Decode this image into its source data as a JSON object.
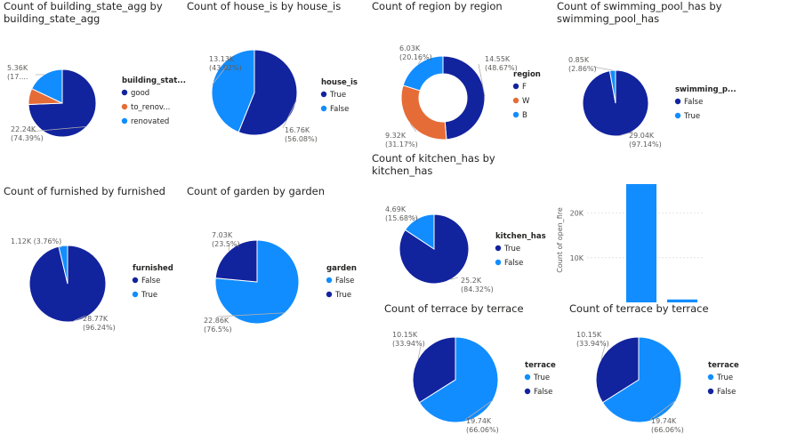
{
  "colors": {
    "dark": "#12239e",
    "light": "#118dff",
    "orange": "#e66c37"
  },
  "chart_data": [
    {
      "type": "pie",
      "title": "Count of building_state_agg by\nbuilding_state_agg",
      "legend_title": "building_stat...",
      "legend_placement": "right",
      "slices": [
        {
          "label": "good",
          "legend": "good",
          "value": 22.24,
          "value_label": "22.24K",
          "pct_label": "(74.39%)",
          "color": "#12239e"
        },
        {
          "label": "to_renovate",
          "legend": "to_renov...",
          "value": 2.3,
          "value_label": "",
          "pct_label": "",
          "color": "#e66c37"
        },
        {
          "label": "renovated",
          "legend": "renovated",
          "value": 5.36,
          "value_label": "5.36K",
          "pct_label": "(17....",
          "color": "#118dff"
        }
      ]
    },
    {
      "type": "pie",
      "title": "Count of house_is by house_is",
      "legend_title": "house_is",
      "legend_placement": "right",
      "slices": [
        {
          "label": "True",
          "legend": "True",
          "value": 16.76,
          "value_label": "16.76K",
          "pct_label": "(56.08%)",
          "color": "#12239e"
        },
        {
          "label": "False",
          "legend": "False",
          "value": 13.13,
          "value_label": "13.13K",
          "pct_label": "(43.92%)",
          "color": "#118dff"
        }
      ]
    },
    {
      "type": "donut",
      "title": "Count of region by region",
      "legend_title": "region",
      "legend_placement": "right",
      "slices": [
        {
          "label": "F",
          "legend": "F",
          "value": 14.55,
          "value_label": "14.55K",
          "pct_label": "(48.67%)",
          "color": "#12239e"
        },
        {
          "label": "W",
          "legend": "W",
          "value": 9.32,
          "value_label": "9.32K",
          "pct_label": "(31.17%)",
          "color": "#e66c37"
        },
        {
          "label": "B",
          "legend": "B",
          "value": 6.03,
          "value_label": "6.03K",
          "pct_label": "(20.16%)",
          "color": "#118dff"
        }
      ]
    },
    {
      "type": "pie",
      "title": "Count of swimming_pool_has by\nswimming_pool_has",
      "legend_title": "swimming_p...",
      "legend_placement": "right",
      "slices": [
        {
          "label": "False",
          "legend": "False",
          "value": 29.04,
          "value_label": "29.04K",
          "pct_label": "(97.14%)",
          "color": "#12239e"
        },
        {
          "label": "True",
          "legend": "True",
          "value": 0.85,
          "value_label": "0.85K",
          "pct_label": "(2.86%)",
          "color": "#118dff"
        }
      ]
    },
    {
      "type": "pie",
      "title": "Count of furnished by furnished",
      "legend_title": "furnished",
      "legend_placement": "right",
      "slices": [
        {
          "label": "False",
          "legend": "False",
          "value": 28.77,
          "value_label": "28.77K",
          "pct_label": "(96.24%)",
          "color": "#12239e"
        },
        {
          "label": "True",
          "legend": "True",
          "value": 1.12,
          "value_label": "1.12K (3.76%)",
          "pct_label": "",
          "color": "#118dff"
        }
      ]
    },
    {
      "type": "pie",
      "title": "Count of garden by garden",
      "legend_title": "garden",
      "legend_placement": "right",
      "slices": [
        {
          "label": "False",
          "legend": "False",
          "value": 22.86,
          "value_label": "22.86K",
          "pct_label": "(76.5%)",
          "color": "#118dff"
        },
        {
          "label": "True",
          "legend": "True",
          "value": 7.03,
          "value_label": "7.03K",
          "pct_label": "(23.5%)",
          "color": "#12239e"
        }
      ]
    },
    {
      "type": "pie",
      "title": "Count of kitchen_has by kitchen_has",
      "legend_title": "kitchen_has",
      "legend_placement": "right",
      "slices": [
        {
          "label": "True",
          "legend": "True",
          "value": 25.2,
          "value_label": "25.2K",
          "pct_label": "(84.32%)",
          "color": "#12239e"
        },
        {
          "label": "False",
          "legend": "False",
          "value": 4.69,
          "value_label": "4.69K",
          "pct_label": "(15.68%)",
          "color": "#118dff"
        }
      ]
    },
    {
      "type": "bar",
      "title": "",
      "ylabel": "Count of open_fire",
      "yticks": [
        {
          "value": 10000,
          "label": "10K"
        },
        {
          "value": 20000,
          "label": "20K"
        }
      ],
      "ylim": [
        0,
        26500
      ],
      "values": [
        26500,
        650
      ],
      "color": "#118dff"
    },
    {
      "type": "pie",
      "title": "Count of terrace by terrace",
      "legend_title": "terrace",
      "legend_placement": "right",
      "slices": [
        {
          "label": "True",
          "legend": "True",
          "value": 19.74,
          "value_label": "19.74K",
          "pct_label": "(66.06%)",
          "color": "#118dff"
        },
        {
          "label": "False",
          "legend": "False",
          "value": 10.15,
          "value_label": "10.15K",
          "pct_label": "(33.94%)",
          "color": "#12239e"
        }
      ]
    },
    {
      "type": "pie",
      "title": "Count of terrace by terrace",
      "legend_title": "terrace",
      "legend_placement": "right",
      "slices": [
        {
          "label": "True",
          "legend": "True",
          "value": 19.74,
          "value_label": "19.74K",
          "pct_label": "(66.06%)",
          "color": "#118dff"
        },
        {
          "label": "False",
          "legend": "False",
          "value": 10.15,
          "value_label": "10.15K",
          "pct_label": "(33.94%)",
          "color": "#12239e"
        }
      ]
    }
  ]
}
